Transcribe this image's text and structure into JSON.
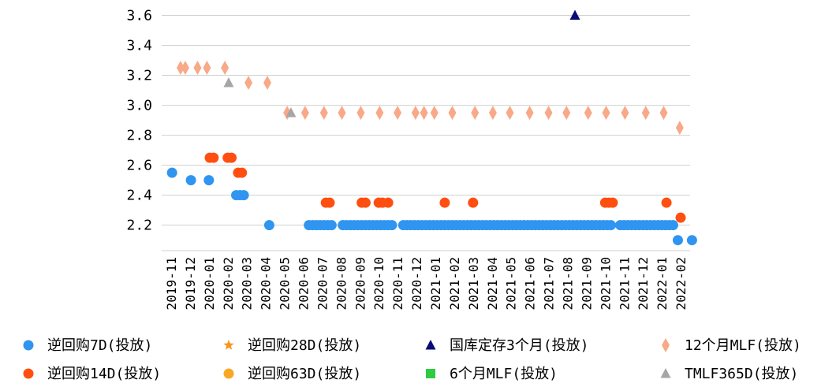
{
  "chart_data": {
    "type": "scatter",
    "y_ticks": [
      "3.6",
      "3.4",
      "3.2",
      "3.0",
      "2.8",
      "2.6",
      "2.4",
      "2.2"
    ],
    "ylim": [
      2.03,
      3.65
    ],
    "categories": [
      "2019-11",
      "2019-12",
      "2020-01",
      "2020-02",
      "2020-03",
      "2020-04",
      "2020-05",
      "2020-06",
      "2020-07",
      "2020-08",
      "2020-09",
      "2020-10",
      "2020-11",
      "2020-12",
      "2021-01",
      "2021-02",
      "2021-03",
      "2021-04",
      "2021-05",
      "2021-06",
      "2021-07",
      "2021-08",
      "2021-09",
      "2021-10",
      "2021-11",
      "2021-12",
      "2022-01",
      "2022-02"
    ],
    "grid": true,
    "legend_position": "bottom",
    "series": [
      {
        "name": "逆回购7D(投放)",
        "symbol": "circle",
        "color": "#2f95f0",
        "points": [
          [
            0.05,
            2.55
          ],
          [
            1.05,
            2.5
          ],
          [
            2.0,
            2.5
          ],
          [
            3.45,
            2.4
          ],
          [
            3.65,
            2.4
          ],
          [
            3.85,
            2.4
          ],
          [
            5.2,
            2.2
          ],
          [
            7.3,
            2.2
          ],
          [
            7.5,
            2.2
          ],
          [
            7.7,
            2.2
          ],
          [
            7.9,
            2.2
          ],
          [
            8.1,
            2.2
          ],
          [
            8.3,
            2.2
          ],
          [
            8.5,
            2.2
          ],
          [
            9.1,
            2.2
          ],
          [
            9.3,
            2.2
          ],
          [
            9.5,
            2.2
          ],
          [
            9.7,
            2.2
          ],
          [
            9.9,
            2.2
          ],
          [
            10.1,
            2.2
          ],
          [
            10.3,
            2.2
          ],
          [
            10.5,
            2.2
          ],
          [
            10.7,
            2.2
          ],
          [
            10.9,
            2.2
          ],
          [
            11.1,
            2.2
          ],
          [
            11.3,
            2.2
          ],
          [
            11.5,
            2.2
          ],
          [
            11.7,
            2.2
          ],
          [
            12.3,
            2.2
          ],
          [
            12.5,
            2.2
          ],
          [
            12.7,
            2.2
          ],
          [
            12.9,
            2.2
          ],
          [
            13.1,
            2.2
          ],
          [
            13.3,
            2.2
          ],
          [
            13.5,
            2.2
          ],
          [
            13.7,
            2.2
          ],
          [
            13.9,
            2.2
          ],
          [
            14.1,
            2.2
          ],
          [
            14.3,
            2.2
          ],
          [
            14.5,
            2.2
          ],
          [
            14.7,
            2.2
          ],
          [
            14.9,
            2.2
          ],
          [
            15.1,
            2.2
          ],
          [
            15.3,
            2.2
          ],
          [
            15.5,
            2.2
          ],
          [
            15.7,
            2.2
          ],
          [
            15.9,
            2.2
          ],
          [
            16.1,
            2.2
          ],
          [
            16.3,
            2.2
          ],
          [
            16.5,
            2.2
          ],
          [
            16.7,
            2.2
          ],
          [
            16.9,
            2.2
          ],
          [
            17.1,
            2.2
          ],
          [
            17.3,
            2.2
          ],
          [
            17.5,
            2.2
          ],
          [
            17.7,
            2.2
          ],
          [
            17.9,
            2.2
          ],
          [
            18.1,
            2.2
          ],
          [
            18.3,
            2.2
          ],
          [
            18.5,
            2.2
          ],
          [
            18.7,
            2.2
          ],
          [
            18.9,
            2.2
          ],
          [
            19.1,
            2.2
          ],
          [
            19.3,
            2.2
          ],
          [
            19.5,
            2.2
          ],
          [
            19.7,
            2.2
          ],
          [
            19.9,
            2.2
          ],
          [
            20.1,
            2.2
          ],
          [
            20.3,
            2.2
          ],
          [
            20.5,
            2.2
          ],
          [
            20.7,
            2.2
          ],
          [
            20.9,
            2.2
          ],
          [
            21.1,
            2.2
          ],
          [
            21.3,
            2.2
          ],
          [
            21.5,
            2.2
          ],
          [
            21.7,
            2.2
          ],
          [
            21.9,
            2.2
          ],
          [
            22.1,
            2.2
          ],
          [
            22.3,
            2.2
          ],
          [
            22.5,
            2.2
          ],
          [
            22.7,
            2.2
          ],
          [
            22.9,
            2.2
          ],
          [
            23.1,
            2.2
          ],
          [
            23.3,
            2.2
          ],
          [
            23.8,
            2.2
          ],
          [
            24.0,
            2.2
          ],
          [
            24.2,
            2.2
          ],
          [
            24.4,
            2.2
          ],
          [
            24.6,
            2.2
          ],
          [
            24.8,
            2.2
          ],
          [
            25.0,
            2.2
          ],
          [
            25.2,
            2.2
          ],
          [
            25.4,
            2.2
          ],
          [
            25.6,
            2.2
          ],
          [
            25.8,
            2.2
          ],
          [
            26.0,
            2.2
          ],
          [
            26.2,
            2.2
          ],
          [
            26.4,
            2.2
          ],
          [
            26.6,
            2.2
          ],
          [
            26.85,
            2.1
          ],
          [
            27.6,
            2.1
          ]
        ]
      },
      {
        "name": "逆回购14D(投放)",
        "symbol": "circle",
        "color": "#ff4f10",
        "points": [
          [
            2.05,
            2.65
          ],
          [
            2.25,
            2.65
          ],
          [
            3.0,
            2.65
          ],
          [
            3.2,
            2.65
          ],
          [
            3.55,
            2.55
          ],
          [
            3.75,
            2.55
          ],
          [
            8.2,
            2.35
          ],
          [
            8.4,
            2.35
          ],
          [
            10.1,
            2.35
          ],
          [
            10.3,
            2.35
          ],
          [
            11.0,
            2.35
          ],
          [
            11.2,
            2.35
          ],
          [
            11.5,
            2.35
          ],
          [
            14.5,
            2.35
          ],
          [
            16.0,
            2.35
          ],
          [
            23.0,
            2.35
          ],
          [
            23.2,
            2.35
          ],
          [
            23.4,
            2.35
          ],
          [
            26.25,
            2.35
          ],
          [
            27.0,
            2.25
          ]
        ]
      },
      {
        "name": "逆回购28D(投放)",
        "symbol": "star",
        "color": "#f7941d",
        "points": []
      },
      {
        "name": "逆回购63D(投放)",
        "symbol": "circle",
        "color": "#f9a825",
        "points": []
      },
      {
        "name": "国库定存3个月(投放)",
        "symbol": "triangle",
        "color": "#0a0a78",
        "points": [
          [
            21.4,
            3.6
          ]
        ]
      },
      {
        "name": "6个月MLF(投放)",
        "symbol": "square",
        "color": "#2ecc40",
        "points": []
      },
      {
        "name": "12个月MLF(投放)",
        "symbol": "diamond",
        "color": "#f8a988",
        "points": [
          [
            0.5,
            3.25
          ],
          [
            0.75,
            3.25
          ],
          [
            1.4,
            3.25
          ],
          [
            1.9,
            3.25
          ],
          [
            2.85,
            3.25
          ],
          [
            4.1,
            3.15
          ],
          [
            5.1,
            3.15
          ],
          [
            6.15,
            2.95
          ],
          [
            7.1,
            2.95
          ],
          [
            8.1,
            2.95
          ],
          [
            9.05,
            2.95
          ],
          [
            10.05,
            2.95
          ],
          [
            11.05,
            2.95
          ],
          [
            12.0,
            2.95
          ],
          [
            12.95,
            2.95
          ],
          [
            13.4,
            2.95
          ],
          [
            13.95,
            2.95
          ],
          [
            14.9,
            2.95
          ],
          [
            16.1,
            2.95
          ],
          [
            17.05,
            2.95
          ],
          [
            17.95,
            2.95
          ],
          [
            19.0,
            2.95
          ],
          [
            20.0,
            2.95
          ],
          [
            20.95,
            2.95
          ],
          [
            22.1,
            2.95
          ],
          [
            23.05,
            2.95
          ],
          [
            24.05,
            2.95
          ],
          [
            25.15,
            2.95
          ],
          [
            26.1,
            2.95
          ],
          [
            26.95,
            2.85
          ]
        ]
      },
      {
        "name": "TMLF365D(投放)",
        "symbol": "triangle",
        "color": "#a6a6a6",
        "points": [
          [
            3.05,
            3.15
          ],
          [
            6.35,
            2.95
          ]
        ]
      }
    ]
  }
}
